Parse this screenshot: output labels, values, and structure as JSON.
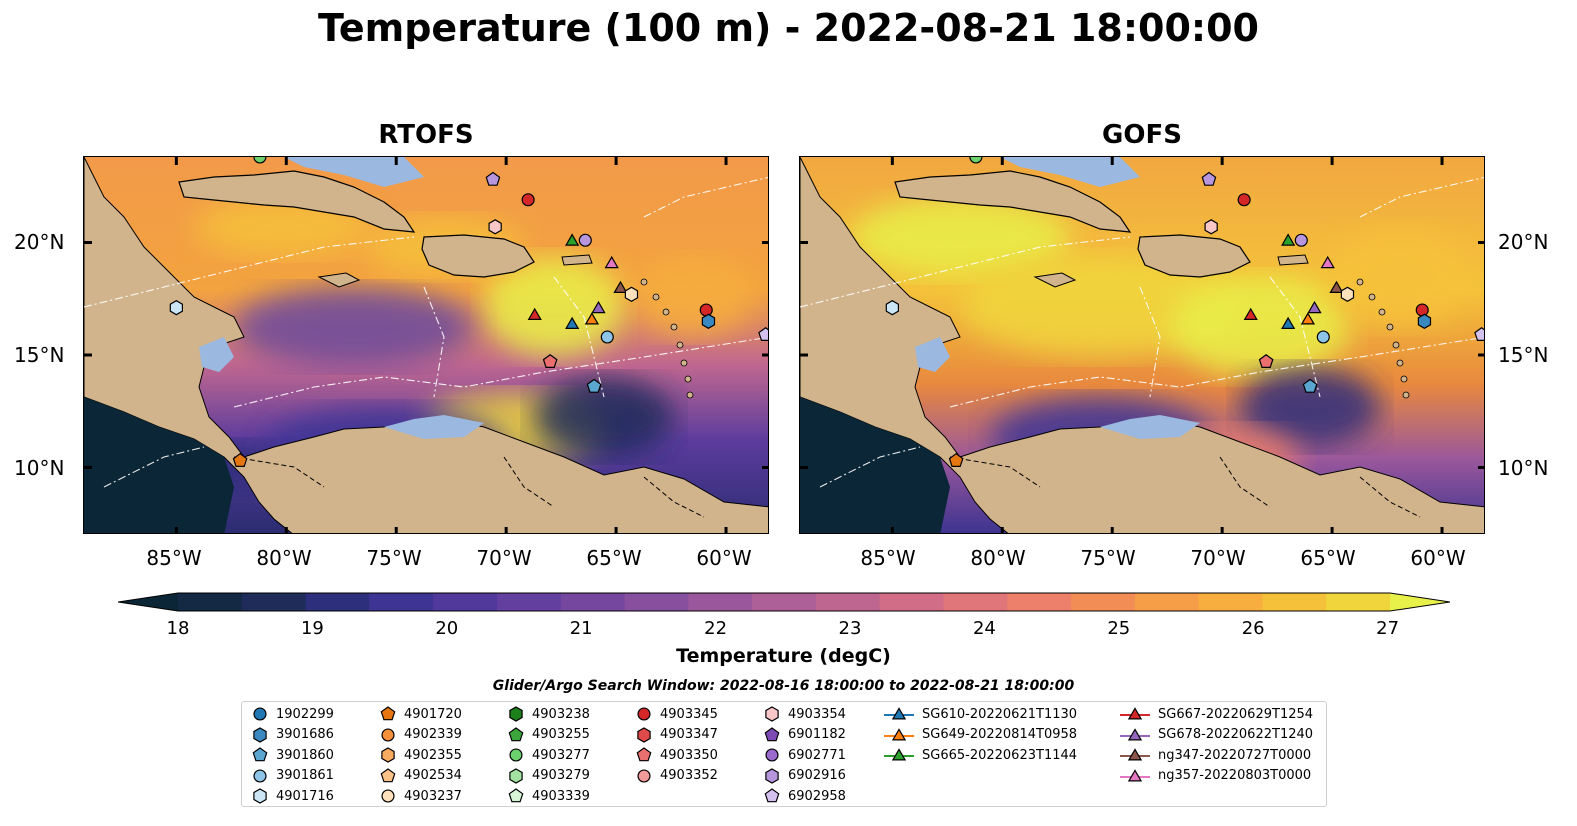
{
  "title": "Temperature (100 m) - 2022-08-21 18:00:00",
  "panels": [
    {
      "title": "RTOFS",
      "left": 83
    },
    {
      "title": "GOFS",
      "left": 799
    }
  ],
  "lon_labels": [
    "85°W",
    "80°W",
    "75°W",
    "70°W",
    "65°W",
    "60°W"
  ],
  "lat_labels": [
    "20°N",
    "15°N",
    "10°N"
  ],
  "colorbar": {
    "label": "Temperature (degC)",
    "ticks": [
      "18",
      "19",
      "20",
      "21",
      "22",
      "23",
      "24",
      "25",
      "26",
      "27"
    ],
    "colors": [
      "#0b2636",
      "#142944",
      "#1f2c5a",
      "#2d2f7c",
      "#3e3494",
      "#51399c",
      "#633f9f",
      "#75479f",
      "#874f9e",
      "#9a579c",
      "#ad5f97",
      "#bf6690",
      "#d16d86",
      "#e0757a",
      "#ec806a",
      "#f38d56",
      "#f69d48",
      "#f7ae3e",
      "#f6c13a",
      "#f0d63c",
      "#e8f04a"
    ]
  },
  "search_window": "Glider/Argo Search Window: 2022-08-16 18:00:00 to 2022-08-21 18:00:00",
  "legend": {
    "columns": [
      [
        {
          "label": "1902299",
          "shape": "circle",
          "color": "#1f77b4"
        },
        {
          "label": "3901686",
          "shape": "hexagon",
          "color": "#3a88c0"
        },
        {
          "label": "3901860",
          "shape": "pentagon",
          "color": "#5aa6d0"
        },
        {
          "label": "3901861",
          "shape": "circle",
          "color": "#8ec4e6"
        },
        {
          "label": "4901716",
          "shape": "hexagon",
          "color": "#cde6f6"
        }
      ],
      [
        {
          "label": "4901720",
          "shape": "pentagon",
          "color": "#e6760f"
        },
        {
          "label": "4902339",
          "shape": "circle",
          "color": "#f5913a"
        },
        {
          "label": "4902355",
          "shape": "hexagon",
          "color": "#f8aa60"
        },
        {
          "label": "4902534",
          "shape": "pentagon",
          "color": "#fbc38a"
        },
        {
          "label": "4903237",
          "shape": "circle",
          "color": "#fde0bc"
        }
      ],
      [
        {
          "label": "4903238",
          "shape": "hexagon",
          "color": "#1c7f1c"
        },
        {
          "label": "4903255",
          "shape": "pentagon",
          "color": "#3ca53c"
        },
        {
          "label": "4903277",
          "shape": "circle",
          "color": "#6cd06c"
        },
        {
          "label": "4903279",
          "shape": "hexagon",
          "color": "#a2e3a2"
        },
        {
          "label": "4903339",
          "shape": "pentagon",
          "color": "#d8f5d8"
        }
      ],
      [
        {
          "label": "4903345",
          "shape": "circle",
          "color": "#d62728"
        },
        {
          "label": "4903347",
          "shape": "hexagon",
          "color": "#e04a4a"
        },
        {
          "label": "4903350",
          "shape": "pentagon",
          "color": "#ea6f6f"
        },
        {
          "label": "4903352",
          "shape": "circle",
          "color": "#f29a9a"
        }
      ],
      [
        {
          "label": "4903354",
          "shape": "hexagon",
          "color": "#f9c7c7"
        },
        {
          "label": "6901182",
          "shape": "pentagon",
          "color": "#7d4bb3"
        },
        {
          "label": "6902771",
          "shape": "circle",
          "color": "#9a6bcc"
        },
        {
          "label": "6902916",
          "shape": "hexagon",
          "color": "#b796dd"
        },
        {
          "label": "6902958",
          "shape": "pentagon",
          "color": "#d5c1ee"
        }
      ],
      [
        {
          "label": "SG610-20220621T1130",
          "shape": "triangle",
          "color": "#1f77b4"
        },
        {
          "label": "SG649-20220814T0958",
          "shape": "triangle",
          "color": "#ff7f0e"
        },
        {
          "label": "SG665-20220623T1144",
          "shape": "triangle",
          "color": "#2ca02c"
        }
      ],
      [
        {
          "label": "SG667-20220629T1254",
          "shape": "triangle",
          "color": "#d62728"
        },
        {
          "label": "SG678-20220622T1240",
          "shape": "triangle",
          "color": "#9467bd"
        },
        {
          "label": "ng347-20220727T0000",
          "shape": "triangle",
          "color": "#8c564b"
        },
        {
          "label": "ng357-20220803T0000",
          "shape": "triangle",
          "color": "#e377c2"
        }
      ]
    ]
  },
  "markers": [
    {
      "lat": 23.8,
      "lon": -81.2,
      "shape": "circle",
      "color": "#6cd06c"
    },
    {
      "lat": 22.8,
      "lon": -70.6,
      "shape": "pentagon",
      "color": "#b796dd"
    },
    {
      "lat": 21.9,
      "lon": -69.0,
      "shape": "circle",
      "color": "#d62728"
    },
    {
      "lat": 20.7,
      "lon": -70.5,
      "shape": "hexagon",
      "color": "#f9c7c7"
    },
    {
      "lat": 20.1,
      "lon": -67.0,
      "shape": "triangle",
      "color": "#2ca02c"
    },
    {
      "lat": 20.1,
      "lon": -66.4,
      "shape": "circle",
      "color": "#b796dd"
    },
    {
      "lat": 19.1,
      "lon": -65.2,
      "shape": "triangle",
      "color": "#e377c2"
    },
    {
      "lat": 18.0,
      "lon": -64.8,
      "shape": "triangle",
      "color": "#8c564b"
    },
    {
      "lat": 17.7,
      "lon": -64.3,
      "shape": "hexagon",
      "color": "#fde0bc"
    },
    {
      "lat": 17.1,
      "lon": -65.8,
      "shape": "triangle",
      "color": "#9467bd"
    },
    {
      "lat": 16.8,
      "lon": -68.7,
      "shape": "triangle",
      "color": "#d62728"
    },
    {
      "lat": 16.6,
      "lon": -66.1,
      "shape": "triangle",
      "color": "#ff7f0e"
    },
    {
      "lat": 16.4,
      "lon": -67.0,
      "shape": "triangle",
      "color": "#1f77b4"
    },
    {
      "lat": 17.0,
      "lon": -60.9,
      "shape": "circle",
      "color": "#d62728"
    },
    {
      "lat": 16.5,
      "lon": -60.8,
      "shape": "hexagon",
      "color": "#3a88c0"
    },
    {
      "lat": 15.8,
      "lon": -65.4,
      "shape": "circle",
      "color": "#8ec4e6"
    },
    {
      "lat": 15.9,
      "lon": -58.2,
      "shape": "pentagon",
      "color": "#d5c1ee"
    },
    {
      "lat": 17.1,
      "lon": -85.0,
      "shape": "hexagon",
      "color": "#cde6f6"
    },
    {
      "lat": 14.7,
      "lon": -68.0,
      "shape": "pentagon",
      "color": "#ea6f6f"
    },
    {
      "lat": 13.6,
      "lon": -66.0,
      "shape": "pentagon",
      "color": "#5aa6d0"
    },
    {
      "lat": 10.3,
      "lon": -82.1,
      "shape": "pentagon",
      "color": "#e6760f"
    }
  ]
}
